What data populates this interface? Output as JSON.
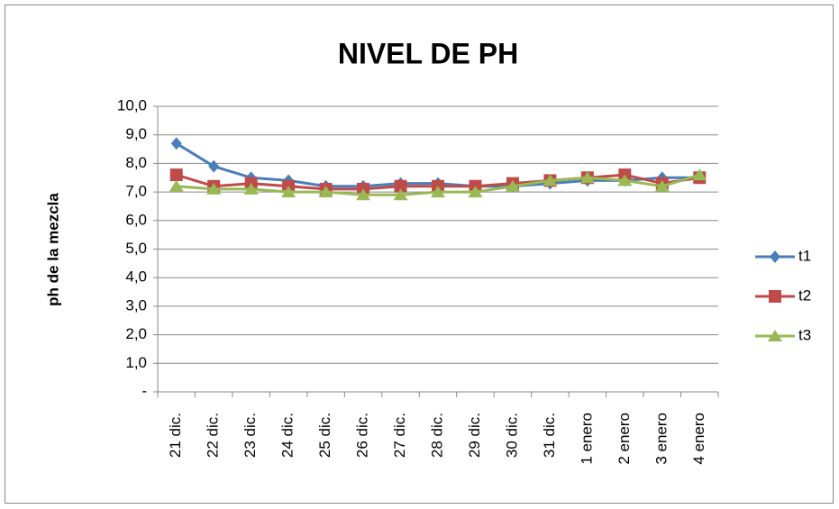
{
  "chart_data": {
    "type": "line",
    "title": "NIVEL DE PH",
    "y_label": "ph de la mezcla",
    "categories": [
      "21 dic.",
      "22 dic.",
      "23 dic.",
      "24 dic.",
      "25 dic.",
      "26 dic.",
      "27 dic.",
      "28 dic.",
      "29 dic.",
      "30 dic.",
      "31 dic.",
      "1 enero",
      "2 enero",
      "3 enero",
      "4 enero"
    ],
    "series": [
      {
        "name": "t1",
        "color": "#4a7ebb",
        "marker": "diamond",
        "values": [
          8.7,
          7.9,
          7.5,
          7.4,
          7.2,
          7.2,
          7.3,
          7.3,
          7.2,
          7.2,
          7.3,
          7.4,
          7.4,
          7.5,
          7.5
        ]
      },
      {
        "name": "t2",
        "color": "#be4b48",
        "marker": "square",
        "values": [
          7.6,
          7.2,
          7.3,
          7.2,
          7.1,
          7.1,
          7.2,
          7.2,
          7.2,
          7.3,
          7.4,
          7.5,
          7.6,
          7.3,
          7.5
        ]
      },
      {
        "name": "t3",
        "color": "#98b954",
        "marker": "triangle",
        "values": [
          7.2,
          7.1,
          7.1,
          7.0,
          7.0,
          6.9,
          6.9,
          7.0,
          7.0,
          7.2,
          7.4,
          7.5,
          7.4,
          7.2,
          7.6
        ]
      }
    ],
    "ylim": [
      0,
      10
    ],
    "yticks": [
      {
        "value": 0,
        "label": "-"
      },
      {
        "value": 1,
        "label": "1,0"
      },
      {
        "value": 2,
        "label": "2,0"
      },
      {
        "value": 3,
        "label": "3,0"
      },
      {
        "value": 4,
        "label": "4,0"
      },
      {
        "value": 5,
        "label": "5,0"
      },
      {
        "value": 6,
        "label": "6,0"
      },
      {
        "value": 7,
        "label": "7,0"
      },
      {
        "value": 8,
        "label": "8,0"
      },
      {
        "value": 9,
        "label": "9,0"
      },
      {
        "value": 10,
        "label": "10,0"
      }
    ],
    "grid": true,
    "legend": "right"
  }
}
